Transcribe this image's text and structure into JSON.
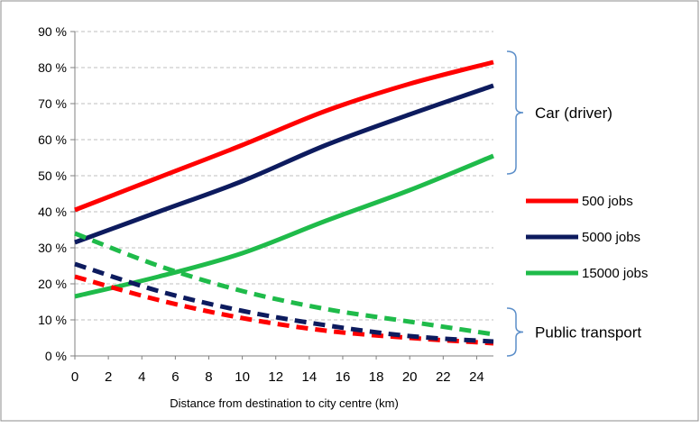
{
  "chart_data": {
    "type": "line",
    "title": "",
    "xlabel": "Distance from destination to city centre (km)",
    "ylabel": "",
    "xlim": [
      0,
      25
    ],
    "ylim": [
      0,
      90
    ],
    "x_ticks": [
      0,
      2,
      4,
      6,
      8,
      10,
      12,
      14,
      16,
      18,
      20,
      22,
      24
    ],
    "y_ticks": [
      0,
      10,
      20,
      30,
      40,
      50,
      60,
      70,
      80,
      90
    ],
    "y_tick_labels": [
      "0 %",
      "10 %",
      "20 %",
      "30 %",
      "40 %",
      "50 %",
      "60 %",
      "70 %",
      "80 %",
      "90 %"
    ],
    "grid": "horizontal dashed",
    "legend_position": "right",
    "x": [
      0,
      5,
      10,
      15,
      20,
      25
    ],
    "series": [
      {
        "name": "500 jobs",
        "group": "Car (driver)",
        "color": "#ff0000",
        "dash": "solid",
        "values": [
          40.5,
          49.5,
          58.5,
          68,
          75.5,
          81.5
        ]
      },
      {
        "name": "5000 jobs",
        "group": "Car (driver)",
        "color": "#0d1b5e",
        "dash": "solid",
        "values": [
          31.5,
          40,
          48.5,
          58.5,
          67,
          75
        ]
      },
      {
        "name": "15000 jobs",
        "group": "Car (driver)",
        "color": "#1fbb4a",
        "dash": "solid",
        "values": [
          16.5,
          22,
          28.5,
          37.5,
          46,
          55.5
        ]
      },
      {
        "name": "500 jobs",
        "group": "Public transport",
        "color": "#ff0000",
        "dash": "dashed",
        "values": [
          22,
          15.5,
          10.5,
          7,
          5,
          3.5
        ]
      },
      {
        "name": "5000 jobs",
        "group": "Public transport",
        "color": "#0d1b5e",
        "dash": "dashed",
        "values": [
          25.5,
          18,
          12.5,
          8.5,
          5.5,
          4
        ]
      },
      {
        "name": "15000 jobs",
        "group": "Public transport",
        "color": "#1fbb4a",
        "dash": "dashed",
        "values": [
          34,
          25,
          18,
          13,
          9.5,
          6
        ]
      }
    ],
    "legend": [
      {
        "label": "500 jobs",
        "color": "#ff0000"
      },
      {
        "label": "5000 jobs",
        "color": "#0d1b5e"
      },
      {
        "label": "15000 jobs",
        "color": "#1fbb4a"
      }
    ],
    "annotations": {
      "car_label": "Car (driver)",
      "pt_label": "Public transport",
      "car_range": [
        50,
        84
      ],
      "pt_range": [
        0,
        12
      ]
    },
    "colors": {
      "brace": "#5b8ec9",
      "grid": "#bfbfbf",
      "axis": "#808080",
      "border": "#8c8c8c"
    }
  }
}
